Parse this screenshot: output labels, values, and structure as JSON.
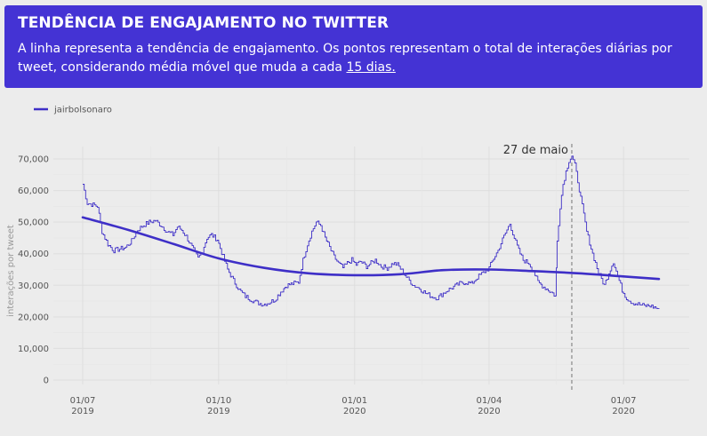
{
  "header": {
    "title": "TENDÊNCIA DE ENGAJAMENTO NO TWITTER",
    "subtitle_prefix": "A linha representa a tendência de engajamento. Os pontos representam o total de interações diárias por tweet, considerando média móvel que muda a cada ",
    "subtitle_link": "15 dias."
  },
  "colors": {
    "header_bg": "#4433d4",
    "series": "#3e2fc7",
    "background": "#ececec"
  },
  "chart_data": {
    "type": "line",
    "title": "",
    "xlabel": "",
    "ylabel": "interações por tweet",
    "ylim": [
      0,
      72000
    ],
    "y_ticks": [
      0,
      10000,
      20000,
      30000,
      40000,
      50000,
      60000,
      70000
    ],
    "y_tick_labels": [
      "0",
      "10,000",
      "20,000",
      "30,000",
      "40,000",
      "50,000",
      "60,000",
      "70,000"
    ],
    "x_range": [
      "2019-07-01",
      "2020-07-25"
    ],
    "x_ticks": [
      {
        "date": "2019-07-01",
        "line1": "01/07",
        "line2": "2019"
      },
      {
        "date": "2019-10-01",
        "line1": "01/10",
        "line2": "2019"
      },
      {
        "date": "2020-01-01",
        "line1": "01/01",
        "line2": "2020"
      },
      {
        "date": "2020-04-01",
        "line1": "01/04",
        "line2": "2020"
      },
      {
        "date": "2020-07-01",
        "line1": "01/07",
        "line2": "2020"
      }
    ],
    "legend": {
      "position": "top-left",
      "label": "jairbolsonaro"
    },
    "grid": true,
    "annotation": {
      "date": "2020-05-27",
      "label": "27 de maio"
    },
    "series": [
      {
        "name": "jairbolsonaro",
        "kind": "daily",
        "points": [
          [
            "2019-07-01",
            62000
          ],
          [
            "2019-07-04",
            56000
          ],
          [
            "2019-07-08",
            55500
          ],
          [
            "2019-07-11",
            55000
          ],
          [
            "2019-07-14",
            47000
          ],
          [
            "2019-07-18",
            43000
          ],
          [
            "2019-07-22",
            41000
          ],
          [
            "2019-07-26",
            41500
          ],
          [
            "2019-07-30",
            42000
          ],
          [
            "2019-08-03",
            44000
          ],
          [
            "2019-08-07",
            47500
          ],
          [
            "2019-08-11",
            49000
          ],
          [
            "2019-08-15",
            50000
          ],
          [
            "2019-08-19",
            50500
          ],
          [
            "2019-08-23",
            49000
          ],
          [
            "2019-08-27",
            47000
          ],
          [
            "2019-08-31",
            46000
          ],
          [
            "2019-09-03",
            48500
          ],
          [
            "2019-09-06",
            47500
          ],
          [
            "2019-09-09",
            45500
          ],
          [
            "2019-09-13",
            42000
          ],
          [
            "2019-09-17",
            38500
          ],
          [
            "2019-09-20",
            41000
          ],
          [
            "2019-09-23",
            45000
          ],
          [
            "2019-09-26",
            46000
          ],
          [
            "2019-09-30",
            44500
          ],
          [
            "2019-10-04",
            39000
          ],
          [
            "2019-10-07",
            35000
          ],
          [
            "2019-10-11",
            31500
          ],
          [
            "2019-10-15",
            28500
          ],
          [
            "2019-10-19",
            26500
          ],
          [
            "2019-10-23",
            25500
          ],
          [
            "2019-10-27",
            24500
          ],
          [
            "2019-10-31",
            24000
          ],
          [
            "2019-11-04",
            24500
          ],
          [
            "2019-11-08",
            25500
          ],
          [
            "2019-11-12",
            28000
          ],
          [
            "2019-11-16",
            30000
          ],
          [
            "2019-11-20",
            30500
          ],
          [
            "2019-11-24",
            31000
          ],
          [
            "2019-11-27",
            38000
          ],
          [
            "2019-11-30",
            43000
          ],
          [
            "2019-12-03",
            47000
          ],
          [
            "2019-12-06",
            50000
          ],
          [
            "2019-12-09",
            49000
          ],
          [
            "2019-12-12",
            45000
          ],
          [
            "2019-12-15",
            42000
          ],
          [
            "2019-12-18",
            39000
          ],
          [
            "2019-12-21",
            37000
          ],
          [
            "2019-12-24",
            35500
          ],
          [
            "2019-12-27",
            37000
          ],
          [
            "2019-12-30",
            38000
          ],
          [
            "2020-01-02",
            36500
          ],
          [
            "2020-01-05",
            37500
          ],
          [
            "2020-01-09",
            36000
          ],
          [
            "2020-01-12",
            37000
          ],
          [
            "2020-01-15",
            38000
          ],
          [
            "2020-01-19",
            36000
          ],
          [
            "2020-01-23",
            35500
          ],
          [
            "2020-01-27",
            37000
          ],
          [
            "2020-01-30",
            36500
          ],
          [
            "2020-02-03",
            34000
          ],
          [
            "2020-02-06",
            32000
          ],
          [
            "2020-02-10",
            30000
          ],
          [
            "2020-02-14",
            29000
          ],
          [
            "2020-02-18",
            27500
          ],
          [
            "2020-02-22",
            26500
          ],
          [
            "2020-02-26",
            26000
          ],
          [
            "2020-03-01",
            27500
          ],
          [
            "2020-03-04",
            28500
          ],
          [
            "2020-03-08",
            29500
          ],
          [
            "2020-03-12",
            30500
          ],
          [
            "2020-03-16",
            31000
          ],
          [
            "2020-03-20",
            30500
          ],
          [
            "2020-03-24",
            32500
          ],
          [
            "2020-03-28",
            34000
          ],
          [
            "2020-04-01",
            35500
          ],
          [
            "2020-04-04",
            38500
          ],
          [
            "2020-04-07",
            41000
          ],
          [
            "2020-04-10",
            44500
          ],
          [
            "2020-04-13",
            47500
          ],
          [
            "2020-04-15",
            49500
          ],
          [
            "2020-04-18",
            45000
          ],
          [
            "2020-04-21",
            41000
          ],
          [
            "2020-04-24",
            38000
          ],
          [
            "2020-04-28",
            37000
          ],
          [
            "2020-05-01",
            34500
          ],
          [
            "2020-05-04",
            31000
          ],
          [
            "2020-05-08",
            29500
          ],
          [
            "2020-05-11",
            28500
          ],
          [
            "2020-05-14",
            27500
          ],
          [
            "2020-05-16",
            26500
          ],
          [
            "2020-05-17",
            44000
          ],
          [
            "2020-05-19",
            55000
          ],
          [
            "2020-05-21",
            62000
          ],
          [
            "2020-05-23",
            66000
          ],
          [
            "2020-05-25",
            69500
          ],
          [
            "2020-05-27",
            71000
          ],
          [
            "2020-05-29",
            68000
          ],
          [
            "2020-05-31",
            63000
          ],
          [
            "2020-06-03",
            55000
          ],
          [
            "2020-06-06",
            47000
          ],
          [
            "2020-06-10",
            40000
          ],
          [
            "2020-06-14",
            34000
          ],
          [
            "2020-06-18",
            30000
          ],
          [
            "2020-06-21",
            34000
          ],
          [
            "2020-06-24",
            37500
          ],
          [
            "2020-06-27",
            33000
          ],
          [
            "2020-06-30",
            28500
          ],
          [
            "2020-07-03",
            26000
          ],
          [
            "2020-07-07",
            24500
          ],
          [
            "2020-07-11",
            24000
          ],
          [
            "2020-07-15",
            23500
          ],
          [
            "2020-07-19",
            23500
          ],
          [
            "2020-07-22",
            23000
          ],
          [
            "2020-07-25",
            22500
          ]
        ]
      },
      {
        "name": "trend",
        "kind": "trend",
        "points": [
          [
            "2019-07-01",
            51500
          ],
          [
            "2019-08-01",
            47500
          ],
          [
            "2019-09-01",
            43000
          ],
          [
            "2019-10-01",
            38500
          ],
          [
            "2019-11-01",
            35500
          ],
          [
            "2019-12-01",
            33800
          ],
          [
            "2020-01-01",
            33200
          ],
          [
            "2020-02-01",
            33500
          ],
          [
            "2020-03-01",
            34800
          ],
          [
            "2020-04-01",
            35000
          ],
          [
            "2020-05-01",
            34500
          ],
          [
            "2020-06-01",
            33800
          ],
          [
            "2020-07-01",
            32800
          ],
          [
            "2020-07-25",
            32000
          ]
        ]
      }
    ]
  }
}
